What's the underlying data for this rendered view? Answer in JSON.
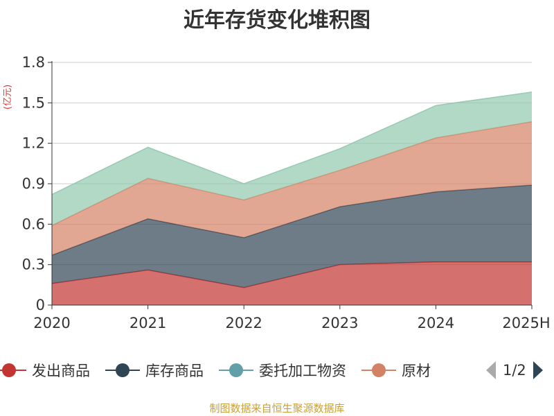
{
  "title": "近年存货变化堆积图",
  "unit": "(亿元)",
  "source": "制图数据来自恒生聚源数据库",
  "colors": {
    "发出商品": "#c23531",
    "库存商品": "#2f4554",
    "委托加工物资": "#61a0a8",
    "原材料": "#d48265"
  },
  "legend": {
    "items": [
      "发出商品",
      "库存商品",
      "委托加工物资",
      "原材"
    ],
    "page": "1/2"
  },
  "chart_data": {
    "type": "area",
    "stacked": true,
    "categories": [
      "2020",
      "2021",
      "2022",
      "2023",
      "2024",
      "2025H"
    ],
    "ylim": [
      0,
      1.8
    ],
    "yticks": [
      "0",
      "0.3",
      "0.6",
      "0.9",
      "1.2",
      "1.5",
      "1.8"
    ],
    "grid": true,
    "series": [
      {
        "name": "发出商品",
        "values": [
          0.16,
          0.26,
          0.13,
          0.3,
          0.32,
          0.32
        ],
        "fill": "#c23531"
      },
      {
        "name": "库存商品",
        "values": [
          0.21,
          0.38,
          0.37,
          0.43,
          0.52,
          0.57
        ],
        "fill": "#2f4554"
      },
      {
        "name": "原材料",
        "values": [
          0.22,
          0.3,
          0.28,
          0.27,
          0.4,
          0.47
        ],
        "fill": "#d48265"
      },
      {
        "name": "",
        "values": [
          0.23,
          0.23,
          0.12,
          0.16,
          0.24,
          0.22
        ],
        "fill": "#91c7ae"
      }
    ]
  }
}
